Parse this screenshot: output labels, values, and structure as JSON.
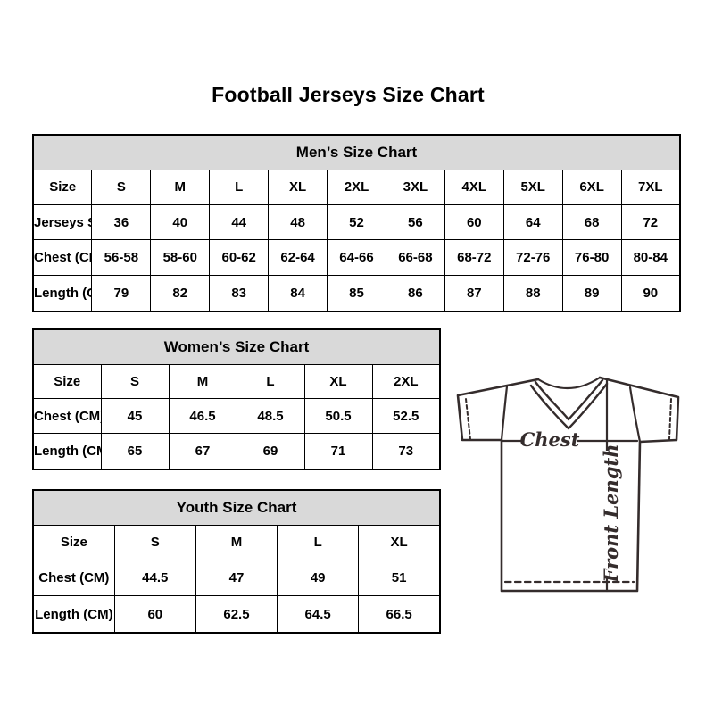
{
  "page": {
    "title": "Football Jerseys Size Chart"
  },
  "tables": {
    "men": {
      "title": "Men’s Size Chart",
      "rows": [
        [
          "Size",
          "S",
          "M",
          "L",
          "XL",
          "2XL",
          "3XL",
          "4XL",
          "5XL",
          "6XL",
          "7XL"
        ],
        [
          "Jerseys Size",
          "36",
          "40",
          "44",
          "48",
          "52",
          "56",
          "60",
          "64",
          "68",
          "72"
        ],
        [
          "Chest (CM)",
          "56-58",
          "58-60",
          "60-62",
          "62-64",
          "64-66",
          "66-68",
          "68-72",
          "72-76",
          "76-80",
          "80-84"
        ],
        [
          "Length (CM)",
          "79",
          "82",
          "83",
          "84",
          "85",
          "86",
          "87",
          "88",
          "89",
          "90"
        ]
      ]
    },
    "women": {
      "title": "Women’s Size Chart",
      "rows": [
        [
          "Size",
          "S",
          "M",
          "L",
          "XL",
          "2XL"
        ],
        [
          "Chest (CM)",
          "45",
          "46.5",
          "48.5",
          "50.5",
          "52.5"
        ],
        [
          "Length (CM)",
          "65",
          "67",
          "69",
          "71",
          "73"
        ]
      ]
    },
    "youth": {
      "title": "Youth Size Chart",
      "rows": [
        [
          "Size",
          "S",
          "M",
          "L",
          "XL"
        ],
        [
          "Chest (CM)",
          "44.5",
          "47",
          "49",
          "51"
        ],
        [
          "Length (CM)",
          "60",
          "62.5",
          "64.5",
          "66.5"
        ]
      ]
    }
  },
  "diagram": {
    "chest_label": "Chest",
    "front_length_label": "Front Length"
  },
  "colors": {
    "header_bg": "#d9d9d9",
    "table_border": "#000000",
    "text": "#000000",
    "jersey_line": "#342c2c"
  }
}
